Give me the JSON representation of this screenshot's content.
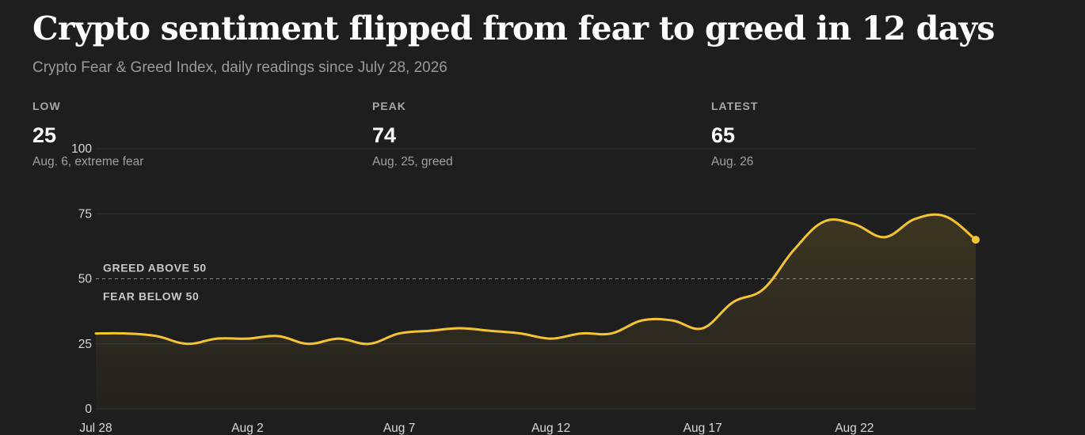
{
  "header": {
    "title": "Crypto sentiment flipped from fear to greed in 12 days",
    "subtitle": "Crypto Fear & Greed Index, daily readings since July 28, 2026"
  },
  "stats": [
    {
      "label": "LOW",
      "value": "25",
      "note": "Aug. 6, extreme fear"
    },
    {
      "label": "PEAK",
      "value": "74",
      "note": "Aug. 25, greed"
    },
    {
      "label": "LATEST",
      "value": "65",
      "note": "Aug. 26"
    }
  ],
  "colors": {
    "background": "#1e1e1e",
    "line": "#f5c431",
    "fill": "#f5c431",
    "grid": "#333333"
  },
  "chart_data": {
    "type": "area",
    "title": "Crypto sentiment flipped from fear to greed in 12 days",
    "x": [
      "Jul 28",
      "Jul 29",
      "Jul 30",
      "Jul 31",
      "Aug 1",
      "Aug 2",
      "Aug 3",
      "Aug 4",
      "Aug 5",
      "Aug 6",
      "Aug 7",
      "Aug 8",
      "Aug 9",
      "Aug 10",
      "Aug 11",
      "Aug 12",
      "Aug 13",
      "Aug 14",
      "Aug 15",
      "Aug 16",
      "Aug 17",
      "Aug 18",
      "Aug 19",
      "Aug 20",
      "Aug 21",
      "Aug 22",
      "Aug 23",
      "Aug 24",
      "Aug 25",
      "Aug 26"
    ],
    "series": [
      {
        "values": [
          29,
          29,
          28,
          25,
          27,
          27,
          28,
          25,
          27,
          25,
          29,
          30,
          31,
          30,
          29,
          27,
          29,
          29,
          34,
          34,
          31,
          41,
          46,
          61,
          72,
          71,
          66,
          73,
          74,
          65
        ]
      }
    ],
    "ylim": [
      0,
      100
    ],
    "yticks": [
      0,
      25,
      50,
      75,
      100
    ],
    "xtick_labels": [
      "Jul 28",
      "Aug 2",
      "Aug 7",
      "Aug 12",
      "Aug 17",
      "Aug 22"
    ],
    "xtick_index": [
      0,
      5,
      10,
      15,
      20,
      25
    ],
    "reference_line": {
      "value": 50,
      "label_above": "GREED ABOVE 50",
      "label_below": "FEAR BELOW 50"
    },
    "grid": true,
    "xlabel": "",
    "ylabel": ""
  }
}
